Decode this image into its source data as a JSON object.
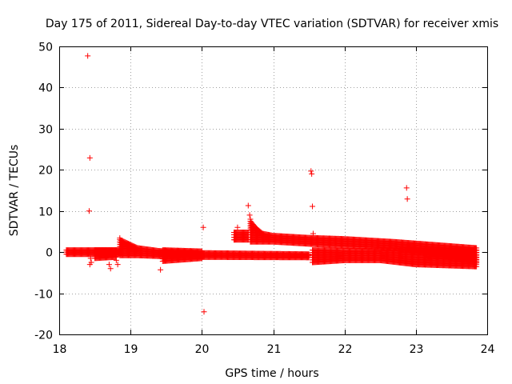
{
  "chart_data": {
    "type": "scatter",
    "title": "Day 175 of 2011, Sidereal Day-to-day VTEC variation (SDTVAR) for receiver xmis",
    "xlabel": "GPS time / hours",
    "ylabel": "SDTVAR / TECUs",
    "xlim": [
      18,
      24
    ],
    "ylim": [
      -20,
      50
    ],
    "x_ticks": [
      18,
      19,
      20,
      21,
      22,
      23,
      24
    ],
    "x_tick_labels": [
      "18",
      "19",
      "20",
      "21",
      "22",
      "23",
      "24"
    ],
    "y_ticks": [
      -20,
      -10,
      0,
      10,
      20,
      30,
      40,
      50
    ],
    "y_tick_labels": [
      "-20",
      "-10",
      "0",
      "10",
      "20",
      "30",
      "40",
      "50"
    ],
    "grid": true,
    "marker": "+",
    "series": [
      {
        "name": "SDTVAR",
        "color": "#ff0000",
        "points": [
          [
            18.4,
            47.7
          ],
          [
            18.43,
            22.9
          ],
          [
            18.42,
            10.0
          ],
          [
            18.44,
            -1.5
          ],
          [
            18.45,
            -2.5
          ],
          [
            18.43,
            -3.0
          ],
          [
            18.7,
            -3.0
          ],
          [
            18.72,
            -4.0
          ],
          [
            18.8,
            -2.0
          ],
          [
            18.82,
            -3.0
          ],
          [
            18.85,
            3.4
          ],
          [
            19.42,
            -4.3
          ],
          [
            20.02,
            6.0
          ],
          [
            20.03,
            -14.5
          ],
          [
            20.5,
            6.0
          ],
          [
            20.65,
            11.3
          ],
          [
            20.67,
            9.0
          ],
          [
            20.68,
            8.0
          ],
          [
            21.53,
            19.7
          ],
          [
            21.54,
            19.0
          ],
          [
            21.55,
            11.1
          ],
          [
            21.56,
            4.5
          ],
          [
            22.87,
            15.6
          ],
          [
            22.88,
            12.9
          ]
        ],
        "trends": [
          {
            "x": [
              18.1,
              18.5,
              18.7,
              18.85
            ],
            "y_low": [
              -0.5,
              -0.5,
              -0.5,
              -0.5
            ],
            "y_high": [
              0.5,
              0.5,
              0.5,
              0.5
            ]
          },
          {
            "x": [
              18.5,
              18.8
            ],
            "y_low": [
              -1.5,
              -1.2
            ],
            "y_high": [
              0.5,
              0.5
            ]
          },
          {
            "x": [
              18.85,
              19.1,
              19.4,
              20.0,
              21.5
            ],
            "y_low": [
              -0.8,
              -0.8,
              -1.0,
              -1.2,
              -1.3
            ],
            "y_high": [
              3.0,
              1.0,
              0.3,
              -0.2,
              -0.5
            ]
          },
          {
            "x": [
              19.45,
              20.0
            ],
            "y_low": [
              -2.2,
              -1.5
            ],
            "y_high": [
              0.5,
              0.2
            ]
          },
          {
            "x": [
              20.45,
              20.65
            ],
            "y_low": [
              3.0,
              3.0
            ],
            "y_high": [
              4.8,
              4.8
            ]
          },
          {
            "x": [
              20.68,
              20.75,
              20.85,
              21.0,
              21.5,
              22.0,
              22.7,
              23.85
            ],
            "y_low": [
              2.5,
              2.5,
              2.5,
              2.5,
              2.0,
              1.5,
              1.0,
              -2.5
            ],
            "y_high": [
              7.5,
              6.0,
              4.5,
              4.0,
              3.5,
              3.2,
              2.5,
              1.0
            ]
          },
          {
            "x": [
              21.55,
              22.0,
              22.5,
              23.0,
              23.85
            ],
            "y_low": [
              -2.5,
              -2.0,
              -2.0,
              -3.0,
              -3.5
            ],
            "y_high": [
              0.5,
              0.3,
              0.3,
              0.5,
              0.5
            ]
          }
        ]
      }
    ]
  }
}
